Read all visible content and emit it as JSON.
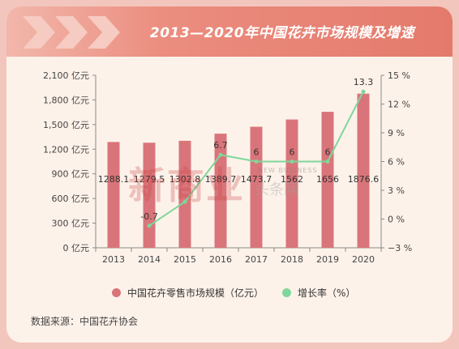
{
  "title": "2013—2020年中国花卉市场规模及增速",
  "source": "数据来源：中国花卉协会",
  "watermark": {
    "main": "新商业",
    "sub": "NEW BUSINESS",
    "cn": "头条网"
  },
  "colors": {
    "bar": "#d9757a",
    "line": "#7fd79a",
    "background": "#fdf2ea",
    "banner": "#e47a6c"
  },
  "chart_data": {
    "type": "bar",
    "categories": [
      "2013",
      "2014",
      "2015",
      "2016",
      "2017",
      "2018",
      "2019",
      "2020"
    ],
    "series": [
      {
        "name": "中国花卉零售市场规模（亿元）",
        "type": "bar",
        "axis": "left",
        "values": [
          1288.1,
          1279.5,
          1302.8,
          1389.7,
          1473.7,
          1562,
          1656,
          1876.6
        ],
        "labels": [
          "1288.1",
          "1279.5",
          "1302.8",
          "1389.7",
          "1473.7",
          "1562",
          "1656",
          "1876.6"
        ]
      },
      {
        "name": "增长率（%）",
        "type": "line",
        "axis": "right",
        "values": [
          null,
          -0.7,
          1.8,
          6.7,
          6,
          6,
          6,
          13.3
        ],
        "labels": [
          "",
          "-0.7",
          "",
          "6.7",
          "6",
          "6",
          "6",
          "13.3"
        ]
      }
    ],
    "ylim": [
      0,
      2100
    ],
    "yticks": [
      "0 亿元",
      "300 亿元",
      "600 亿元",
      "900 亿元",
      "1,200 亿元",
      "1,500 亿元",
      "1,800 亿元",
      "2,100 亿元"
    ],
    "y2lim": [
      -3,
      15
    ],
    "y2ticks": [
      "−3 %",
      "0 %",
      "3 %",
      "6 %",
      "9 %",
      "12 %",
      "15 %"
    ],
    "legend_position": "bottom",
    "grid": false
  }
}
